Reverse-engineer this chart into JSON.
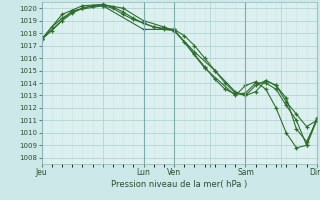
{
  "bg_color": "#cce8e8",
  "plot_bg_color": "#ddf0f0",
  "grid_color_major": "#aacece",
  "grid_color_minor": "#cce4e4",
  "line_color": "#2d6e2d",
  "ylim": [
    1007.5,
    1020.5
  ],
  "yticks": [
    1008,
    1009,
    1010,
    1011,
    1012,
    1013,
    1014,
    1015,
    1016,
    1017,
    1018,
    1019,
    1020
  ],
  "xlabel": "Pression niveau de la mer( hPa )",
  "xtick_labels": [
    "Jeu",
    "",
    "Lun",
    "Ven",
    "",
    "Sam",
    "",
    "Dim"
  ],
  "xtick_positions": [
    0,
    6,
    10,
    13,
    16.5,
    20,
    23.5,
    27
  ],
  "vline_positions": [
    0,
    10,
    13,
    20,
    27
  ],
  "series1_x": [
    0,
    1,
    2,
    3,
    4,
    5,
    6,
    7,
    8,
    9,
    10,
    11,
    12,
    13,
    14,
    15,
    16,
    17,
    18,
    19,
    20,
    21,
    22,
    23,
    24,
    25,
    26,
    27
  ],
  "series1": [
    1017.5,
    1018.2,
    1019.0,
    1019.6,
    1020.0,
    1020.2,
    1020.2,
    1020.0,
    1019.5,
    1019.1,
    1018.8,
    1018.5,
    1018.4,
    1018.3,
    1017.8,
    1017.0,
    1016.0,
    1015.0,
    1014.0,
    1013.2,
    1013.0,
    1013.8,
    1014.2,
    1013.8,
    1012.5,
    1011.5,
    1010.5,
    1011.0
  ],
  "series2_x": [
    0,
    1,
    2,
    3,
    4,
    5,
    6,
    7,
    8,
    9,
    10,
    11,
    12,
    13,
    14,
    15,
    16,
    17,
    18,
    19,
    20,
    21,
    22,
    23,
    24,
    25,
    26,
    27
  ],
  "series2": [
    1017.5,
    1018.5,
    1019.2,
    1019.7,
    1020.0,
    1020.2,
    1020.3,
    1020.1,
    1019.7,
    1019.2,
    1018.8,
    1018.5,
    1018.3,
    1018.2,
    1017.3,
    1016.3,
    1015.3,
    1014.3,
    1013.5,
    1013.1,
    1013.2,
    1014.0,
    1014.0,
    1013.5,
    1012.2,
    1011.0,
    1009.0,
    1011.2
  ],
  "series3_x": [
    0,
    2,
    4,
    6,
    8,
    10,
    12,
    13,
    15,
    17,
    19,
    20,
    21,
    22,
    23,
    24,
    25,
    26,
    27
  ],
  "series3": [
    1017.5,
    1019.5,
    1020.2,
    1020.3,
    1020.0,
    1019.0,
    1018.5,
    1018.2,
    1016.5,
    1015.0,
    1013.3,
    1013.0,
    1013.3,
    1014.2,
    1013.8,
    1012.8,
    1010.3,
    1009.3,
    1011.0
  ],
  "series4_x": [
    0,
    3,
    6,
    10,
    13,
    16,
    19,
    20,
    21,
    22,
    23,
    24,
    25,
    26,
    27
  ],
  "series4": [
    1017.5,
    1019.8,
    1020.2,
    1018.3,
    1018.3,
    1015.2,
    1013.0,
    1013.8,
    1014.1,
    1013.5,
    1012.0,
    1010.0,
    1008.8,
    1009.0,
    1011.0
  ]
}
